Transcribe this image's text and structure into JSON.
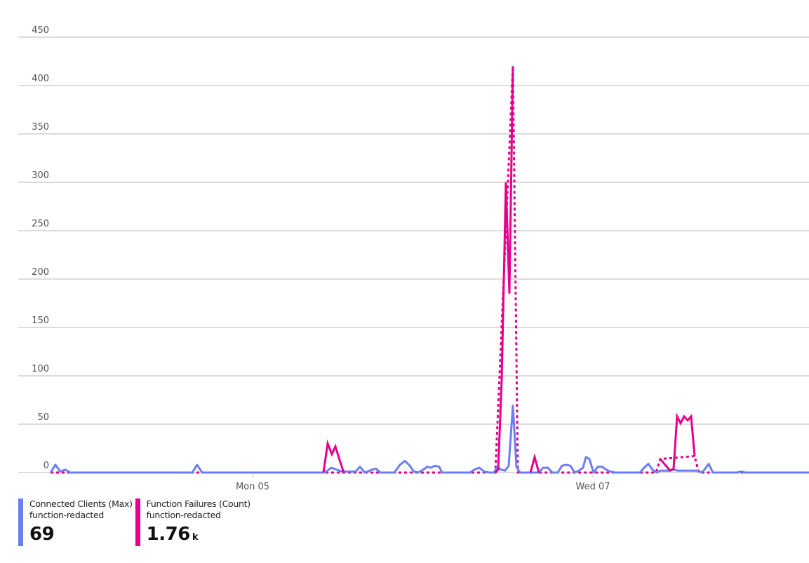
{
  "chart_data": {
    "type": "line",
    "title": "",
    "xlabel": "",
    "ylabel": "",
    "ylim": [
      0,
      450
    ],
    "y_ticks": [
      0,
      50,
      100,
      150,
      200,
      250,
      300,
      350,
      400,
      450
    ],
    "x_ticks": [
      {
        "label": "Mon 05",
        "x": 360
      },
      {
        "label": "Wed 07",
        "x": 845
      }
    ],
    "grid": true,
    "legend_position": "bottom-left",
    "series": [
      {
        "name": "Connected Clients (Max)",
        "resource": "function-redacted",
        "color": "#6b7ff2",
        "summary_value": "69",
        "summary_unit": "",
        "style": "solid",
        "points": [
          [
            72,
            0
          ],
          [
            79,
            8
          ],
          [
            86,
            1
          ],
          [
            93,
            3
          ],
          [
            100,
            0
          ],
          [
            274,
            0
          ],
          [
            281,
            8
          ],
          [
            288,
            0
          ],
          [
            460,
            0
          ],
          [
            465,
            1
          ],
          [
            472,
            5
          ],
          [
            480,
            3
          ],
          [
            488,
            1
          ],
          [
            497,
            1
          ],
          [
            507,
            1
          ],
          [
            513,
            6
          ],
          [
            520,
            0
          ],
          [
            530,
            3
          ],
          [
            536,
            4
          ],
          [
            542,
            0
          ],
          [
            562,
            0
          ],
          [
            570,
            8
          ],
          [
            577,
            12
          ],
          [
            583,
            8
          ],
          [
            590,
            1
          ],
          [
            596,
            0
          ],
          [
            603,
            3
          ],
          [
            609,
            6
          ],
          [
            614,
            5
          ],
          [
            620,
            7
          ],
          [
            626,
            6
          ],
          [
            630,
            0
          ],
          [
            670,
            0
          ],
          [
            676,
            3
          ],
          [
            683,
            5
          ],
          [
            690,
            1
          ],
          [
            697,
            0
          ],
          [
            704,
            0
          ],
          [
            709,
            6
          ],
          [
            714,
            3
          ],
          [
            720,
            2
          ],
          [
            725,
            7
          ],
          [
            731,
            69
          ],
          [
            736,
            6
          ],
          [
            741,
            0
          ],
          [
            755,
            0
          ],
          [
            762,
            0
          ],
          [
            768,
            0
          ],
          [
            774,
            5
          ],
          [
            781,
            5
          ],
          [
            787,
            0
          ],
          [
            795,
            0
          ],
          [
            801,
            7
          ],
          [
            807,
            8
          ],
          [
            813,
            7
          ],
          [
            819,
            0
          ],
          [
            825,
            2
          ],
          [
            831,
            5
          ],
          [
            835,
            16
          ],
          [
            840,
            14
          ],
          [
            846,
            0
          ],
          [
            852,
            6
          ],
          [
            858,
            6
          ],
          [
            864,
            3
          ],
          [
            870,
            1
          ],
          [
            876,
            0
          ],
          [
            912,
            0
          ],
          [
            918,
            5
          ],
          [
            924,
            9
          ],
          [
            930,
            3
          ],
          [
            936,
            0
          ],
          [
            941,
            2
          ],
          [
            948,
            2
          ],
          [
            955,
            2
          ],
          [
            960,
            3
          ],
          [
            966,
            2
          ],
          [
            975,
            2
          ],
          [
            985,
            2
          ],
          [
            994,
            2
          ],
          [
            1000,
            0
          ],
          [
            1004,
            3
          ],
          [
            1010,
            9
          ],
          [
            1016,
            0
          ],
          [
            1050,
            0
          ],
          [
            1056,
            1
          ],
          [
            1062,
            0
          ],
          [
            1153,
            0
          ]
        ]
      },
      {
        "name": "Function Failures (Count)",
        "resource": "function-redacted",
        "color": "#e3008c",
        "summary_value": "1.76",
        "summary_unit": "k",
        "style": "solid-with-dotted-gaps",
        "segments": [
          [
            [
              461,
              0
            ],
            [
              467,
              30
            ],
            [
              473,
              19
            ],
            [
              478,
              27
            ],
            [
              484,
              13
            ],
            [
              490,
              0
            ]
          ],
          [
            [
              706,
              0
            ],
            [
              710,
              3
            ],
            [
              715,
              95
            ],
            [
              721,
              300
            ],
            [
              726,
              185
            ],
            [
              731,
              420
            ]
          ],
          [
            [
              756,
              0
            ],
            [
              762,
              16
            ],
            [
              768,
              0
            ]
          ],
          [
            [
              941,
              14
            ],
            [
              948,
              8
            ],
            [
              955,
              2
            ],
            [
              960,
              4
            ],
            [
              965,
              58
            ],
            [
              970,
              51
            ],
            [
              975,
              58
            ],
            [
              980,
              54
            ],
            [
              985,
              58
            ],
            [
              990,
              17
            ]
          ]
        ],
        "dotted_baseline": [
          [
            72,
            0
          ],
          [
            461,
            0
          ],
          [
            490,
            0
          ],
          [
            706,
            0
          ],
          [
            731,
            420
          ],
          [
            738,
            0
          ],
          [
            756,
            0
          ],
          [
            768,
            0
          ],
          [
            935,
            0
          ],
          [
            941,
            14
          ],
          [
            990,
            17
          ],
          [
            996,
            0
          ],
          [
            1153,
            0
          ]
        ]
      }
    ]
  },
  "legend": {
    "items": [
      {
        "name": "Connected Clients (Max)",
        "resource": "function-redacted",
        "value": "69",
        "unit": "",
        "color": "#6b7ff2"
      },
      {
        "name": "Function Failures (Count)",
        "resource": "function-redacted",
        "value": "1.76",
        "unit": "k",
        "color": "#e3008c"
      }
    ]
  }
}
